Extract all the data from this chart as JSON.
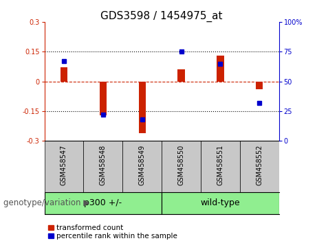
{
  "title": "GDS3598 / 1454975_at",
  "samples": [
    "GSM458547",
    "GSM458548",
    "GSM458549",
    "GSM458550",
    "GSM458551",
    "GSM458552"
  ],
  "red_values": [
    0.07,
    -0.17,
    -0.26,
    0.06,
    0.13,
    -0.04
  ],
  "blue_values": [
    67,
    22,
    18,
    75,
    65,
    32
  ],
  "ylim_left": [
    -0.3,
    0.3
  ],
  "ylim_right": [
    0,
    100
  ],
  "yticks_left": [
    -0.3,
    -0.15,
    0,
    0.15,
    0.3
  ],
  "yticks_right": [
    0,
    25,
    50,
    75,
    100
  ],
  "ytick_labels_left": [
    "-0.3",
    "-0.15",
    "0",
    "0.15",
    "0.3"
  ],
  "ytick_labels_right": [
    "0",
    "25",
    "50",
    "75",
    "100%"
  ],
  "group_label": "genotype/variation",
  "red_color": "#CC2200",
  "blue_color": "#0000CC",
  "hline_color": "#CC2200",
  "dotted_color": "#000000",
  "bar_width": 0.18,
  "blue_marker_size": 5,
  "legend_red": "transformed count",
  "legend_blue": "percentile rank within the sample",
  "bg_plot": "#FFFFFF",
  "bg_xtick": "#C8C8C8",
  "bg_group": "#90EE90",
  "font_size_title": 11,
  "font_size_ticks": 7,
  "font_size_legend": 7.5,
  "font_size_group_label": 8.5,
  "font_size_group_text": 9
}
